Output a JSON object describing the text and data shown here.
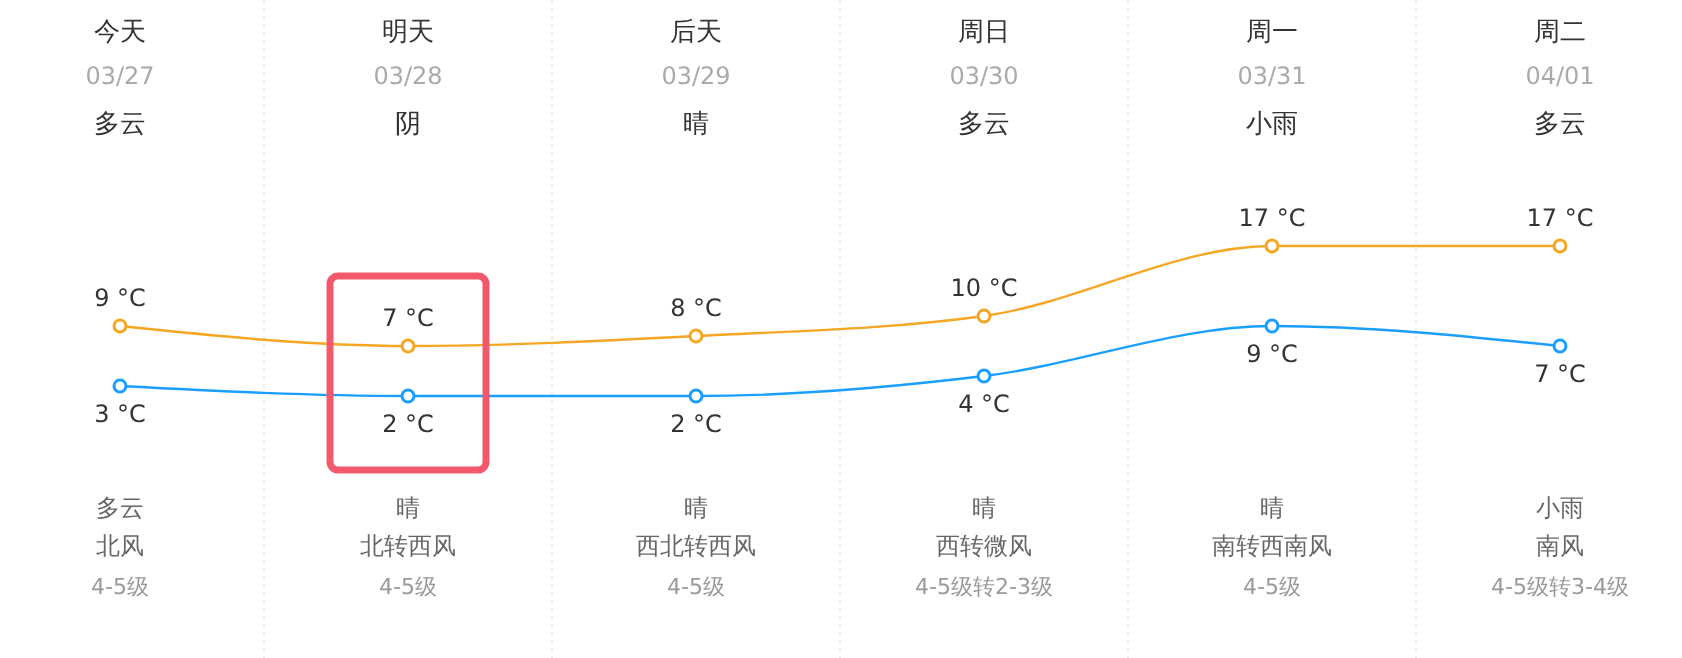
{
  "chart_data": {
    "type": "line",
    "categories": [
      "今天\n03/27\n多云",
      "明天\n03/28\n阴",
      "后天\n03/29\n晴",
      "周日\n03/30\n多云",
      "周一\n03/31\n小雨",
      "周二\n04/01\n多云"
    ],
    "series": [
      {
        "color": "#f5a623",
        "values": [
          9,
          7,
          8,
          10,
          17,
          17
        ],
        "value_labels": [
          "9 °C",
          "7 °C",
          "8 °C",
          "10 °C",
          "17 °C",
          "17 °C"
        ]
      },
      {
        "color": "#1a9fff",
        "values": [
          3,
          2,
          2,
          4,
          9,
          7
        ],
        "value_labels": [
          "3 °C",
          "2 °C",
          "2 °C",
          "4 °C",
          "9 °C",
          "7 °C"
        ]
      }
    ],
    "marker": "circle",
    "line_style": "solid",
    "grid": "x",
    "annotations": [
      "多云",
      "北风",
      "4-5级",
      "晴",
      "北转西风",
      "4-5级",
      "晴",
      "西北转西风",
      "4-5级",
      "晴",
      "西转微风",
      "4-5级转2-3级",
      "晴",
      "南转西南风",
      "4-5级",
      "小雨",
      "南风",
      "4-5级转3-4级"
    ]
  }
}
